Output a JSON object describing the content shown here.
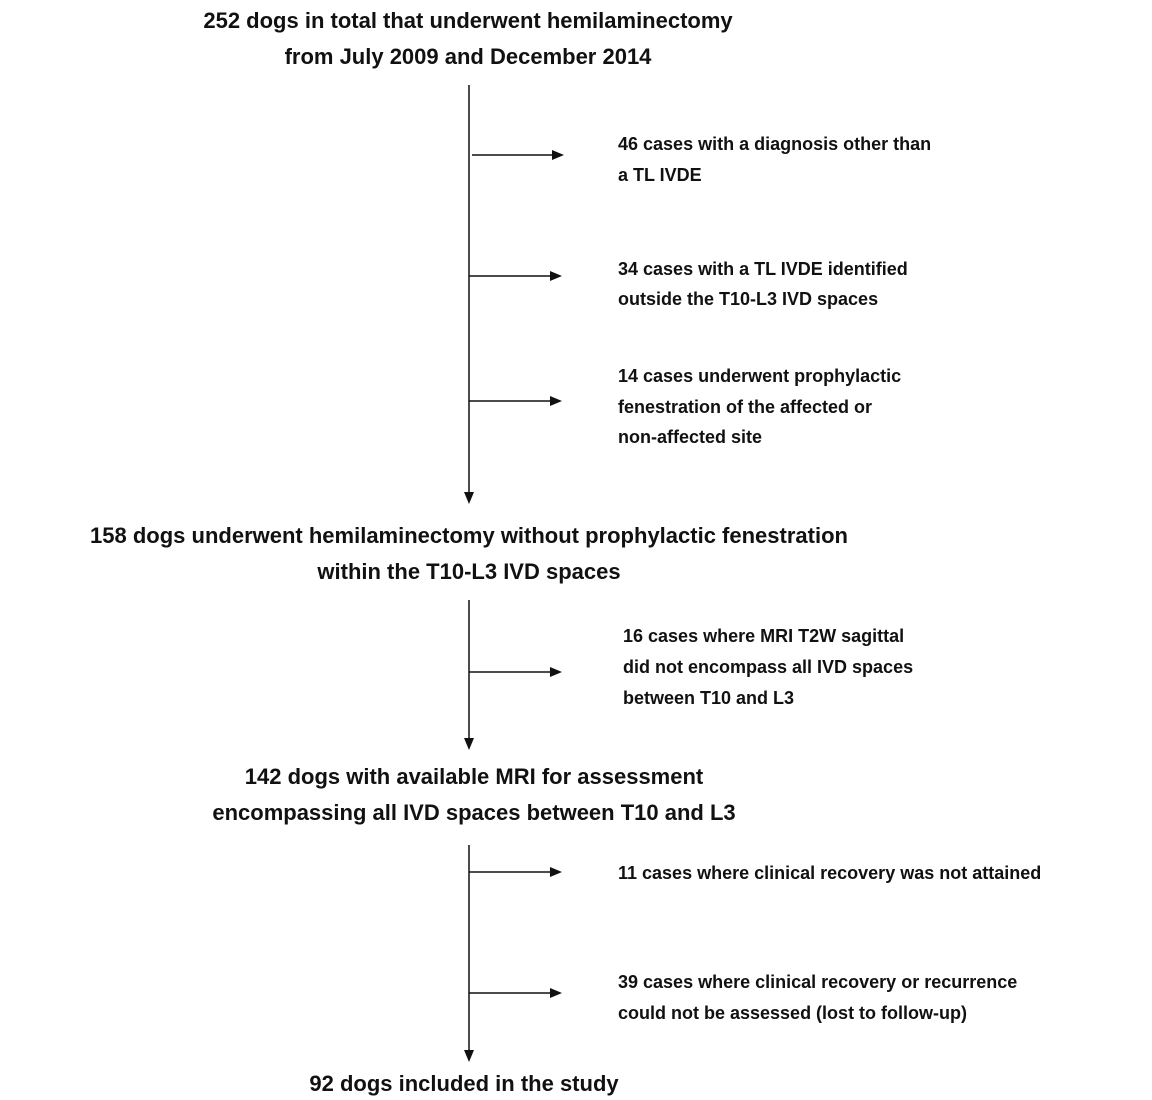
{
  "flow": {
    "steps": [
      {
        "lines": [
          "252 dogs in total that underwent hemilaminectomy",
          "from July 2009 and December 2014"
        ]
      },
      {
        "lines": [
          "158 dogs underwent hemilaminectomy without prophylactic fenestration",
          "within the T10-L3 IVD spaces"
        ]
      },
      {
        "lines": [
          "142 dogs with available MRI for assessment",
          "encompassing all IVD spaces between T10 and L3"
        ]
      },
      {
        "lines": [
          "92 dogs included in the study"
        ]
      }
    ],
    "exclusions": [
      {
        "lines": [
          "46 cases with a diagnosis other than",
          "a TL IVDE"
        ]
      },
      {
        "lines": [
          "34 cases with a TL IVDE identified",
          "outside the T10-L3 IVD spaces"
        ]
      },
      {
        "lines": [
          "14 cases underwent prophylactic",
          "fenestration of the affected or",
          "non-affected site"
        ]
      },
      {
        "lines": [
          "16 cases where MRI T2W sagittal",
          "did not encompass all IVD spaces",
          "between T10 and L3"
        ]
      },
      {
        "lines": [
          "11 cases where clinical recovery was not attained"
        ]
      },
      {
        "lines": [
          "39 cases where clinical recovery or recurrence",
          "could not be assessed (lost to follow-up)"
        ]
      }
    ]
  }
}
